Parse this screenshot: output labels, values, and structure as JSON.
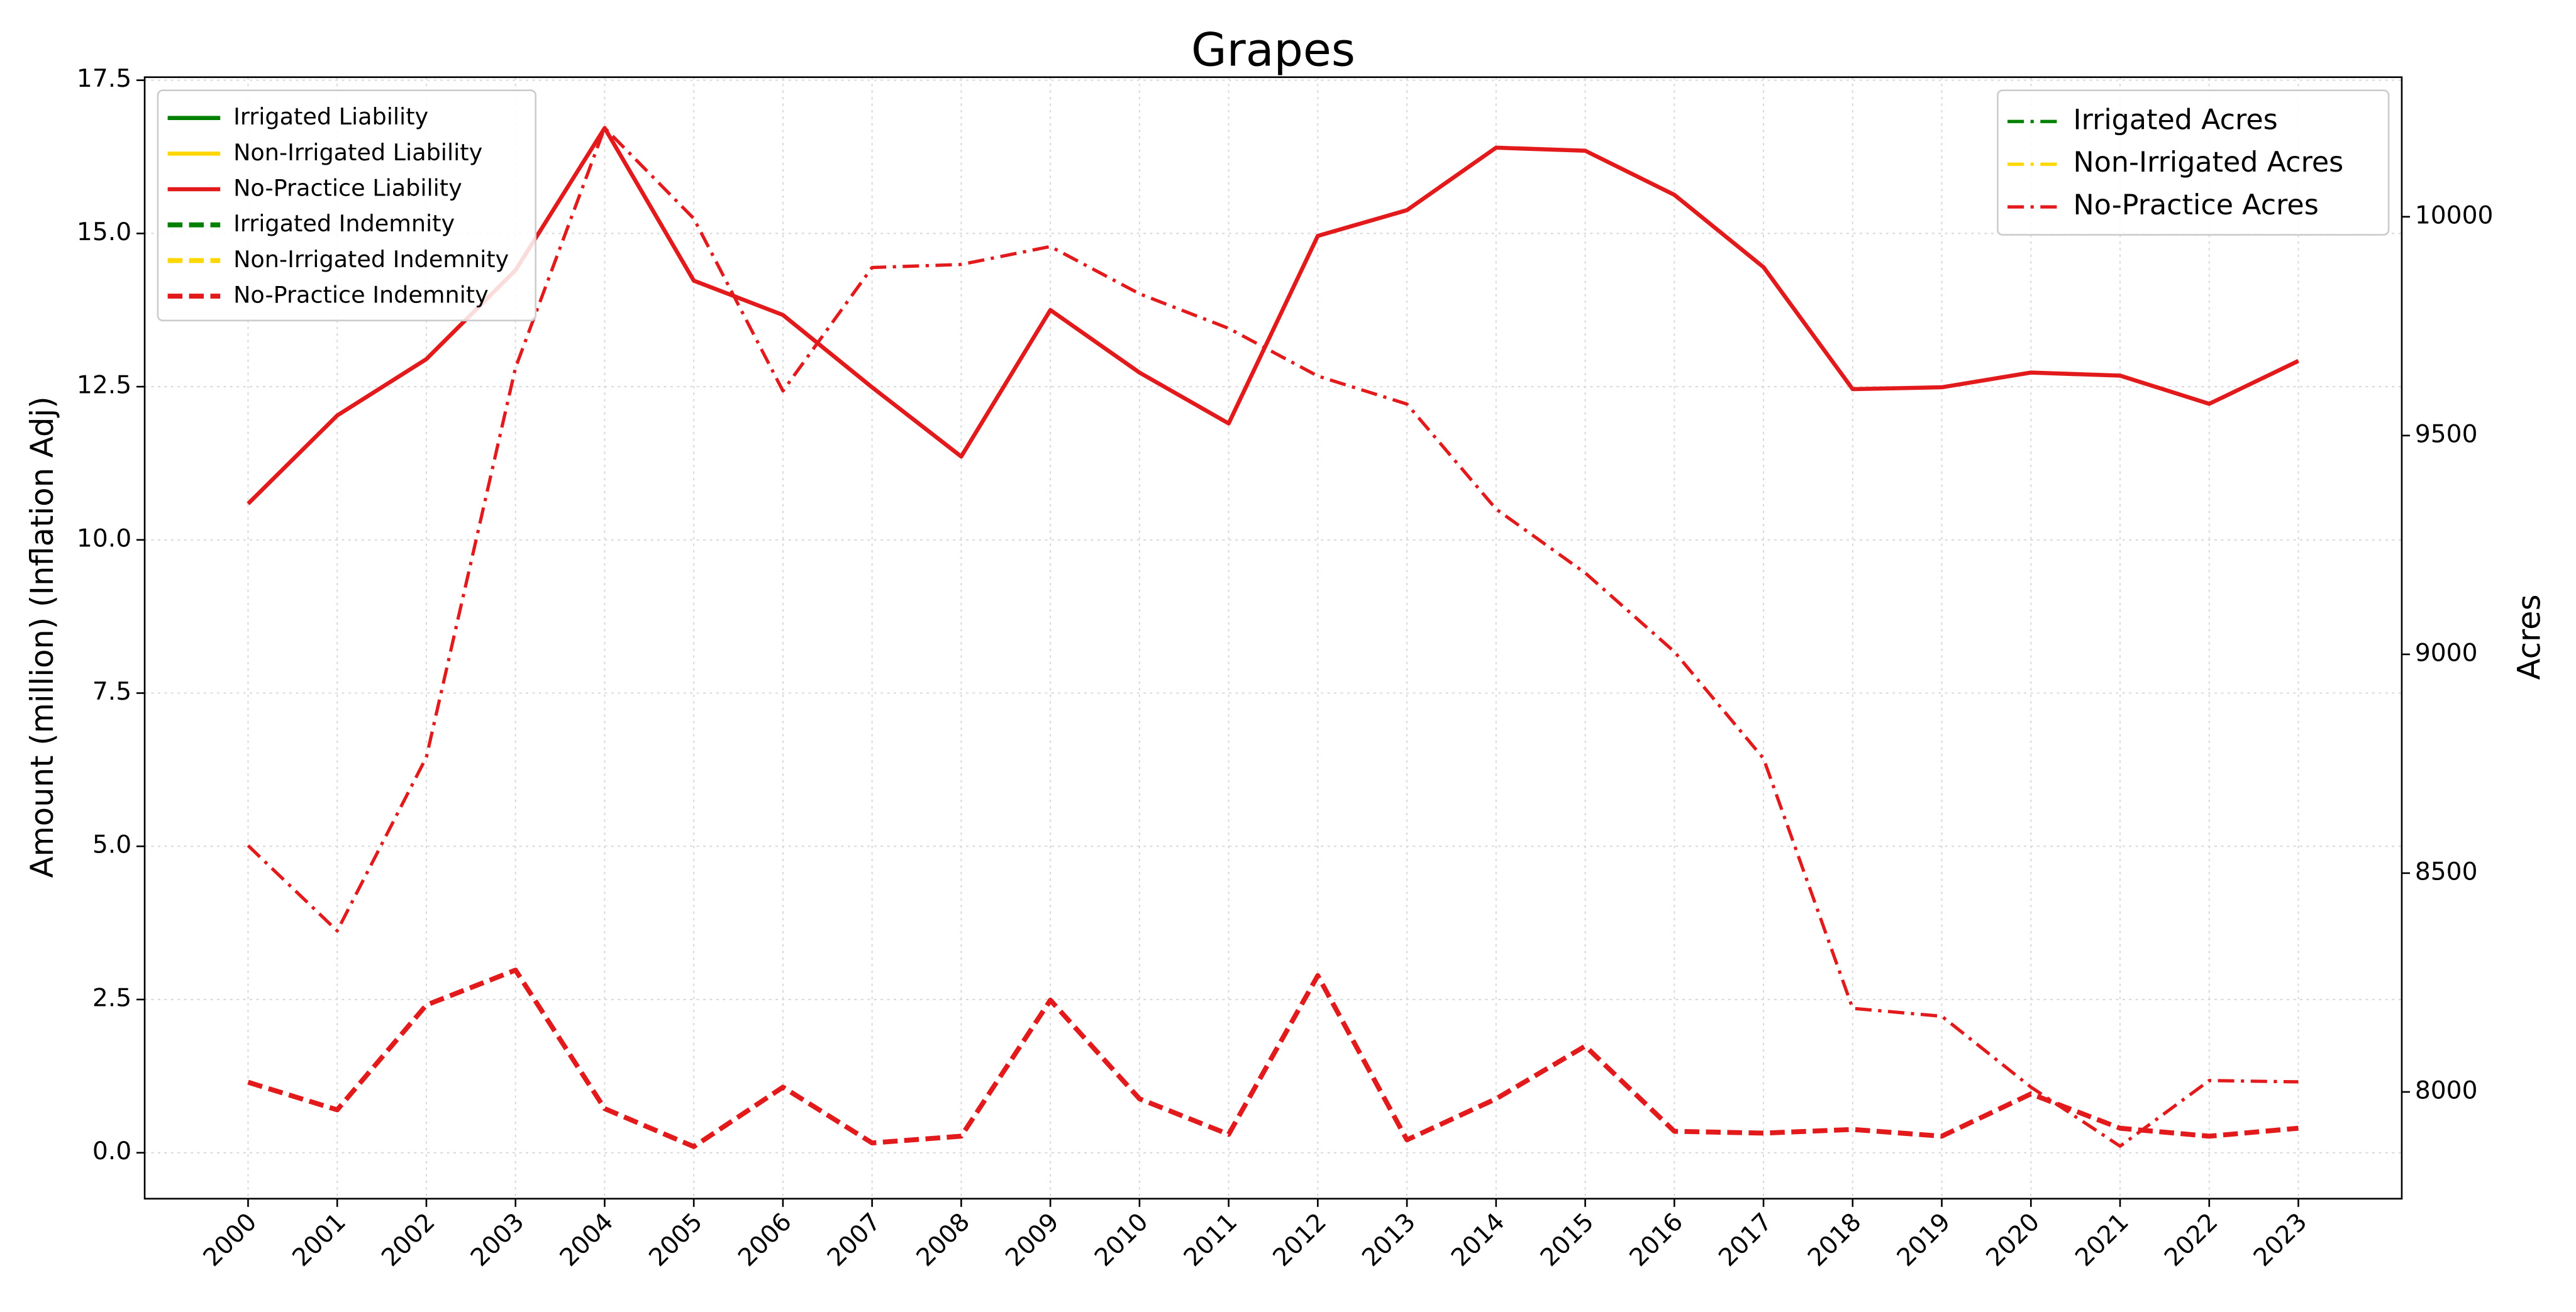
{
  "chart_data": {
    "type": "line",
    "title": "Grapes",
    "y_label": "Amount (million) (Inflation Adj)",
    "y2_label": "Acres",
    "x": [
      2000,
      2001,
      2002,
      2003,
      2004,
      2005,
      2006,
      2007,
      2008,
      2009,
      2010,
      2011,
      2012,
      2013,
      2014,
      2015,
      2016,
      2017,
      2018,
      2019,
      2020,
      2021,
      2022,
      2023
    ],
    "xlim": [
      1998.84,
      2024.16
    ],
    "xticks": [
      2000,
      2001,
      2002,
      2003,
      2004,
      2005,
      2006,
      2007,
      2008,
      2009,
      2010,
      2011,
      2012,
      2013,
      2014,
      2015,
      2016,
      2017,
      2018,
      2019,
      2020,
      2021,
      2022,
      2023
    ],
    "ylim": [
      -0.75,
      17.55
    ],
    "yticks": [
      {
        "value": 0,
        "label": "0.0"
      },
      2.5,
      {
        "value": 5,
        "label": "5.0"
      },
      7.5,
      {
        "value": 10,
        "label": "10.0"
      },
      12.5,
      {
        "value": 15,
        "label": "15.0"
      },
      17.5
    ],
    "y2lim": [
      7756,
      10319
    ],
    "y2ticks": [
      8000,
      8500,
      9000,
      9500,
      10000
    ],
    "grid": true,
    "legend": "upper left",
    "legend2": "upper right",
    "series": [
      {
        "name": "Irrigated Liability",
        "color": "#008000",
        "linestyle": "solid",
        "values": [
          null,
          null,
          null,
          null,
          null,
          null,
          null,
          null,
          null,
          null,
          null,
          null,
          null,
          null,
          null,
          null,
          null,
          null,
          null,
          null,
          null,
          null,
          null,
          null
        ]
      },
      {
        "name": "Non-Irrigated Liability",
        "color": "#ffd700",
        "linestyle": "solid",
        "values": [
          null,
          null,
          null,
          null,
          null,
          null,
          null,
          null,
          null,
          null,
          null,
          null,
          null,
          null,
          null,
          null,
          null,
          null,
          null,
          null,
          null,
          null,
          null,
          null
        ]
      },
      {
        "name": "No-Practice Liability",
        "color": "#e31a1c",
        "linestyle": "solid",
        "values": [
          10.59,
          12.03,
          12.95,
          14.4,
          16.72,
          14.23,
          13.67,
          12.49,
          11.36,
          13.75,
          12.73,
          11.9,
          14.96,
          15.38,
          16.4,
          16.35,
          15.63,
          14.45,
          12.46,
          12.49,
          12.73,
          12.68,
          12.22,
          12.92
        ]
      },
      {
        "name": "Irrigated Indemnity",
        "color": "#008000",
        "linestyle": "dashed",
        "values": [
          null,
          null,
          null,
          null,
          null,
          null,
          null,
          null,
          null,
          null,
          null,
          null,
          null,
          null,
          null,
          null,
          null,
          null,
          null,
          null,
          null,
          null,
          null,
          null
        ]
      },
      {
        "name": "Non-Irrigated Indemnity",
        "color": "#ffd700",
        "linestyle": "dashed",
        "values": [
          null,
          null,
          null,
          null,
          null,
          null,
          null,
          null,
          null,
          null,
          null,
          null,
          null,
          null,
          null,
          null,
          null,
          null,
          null,
          null,
          null,
          null,
          null,
          null
        ]
      },
      {
        "name": "No-Practice Indemnity",
        "color": "#e31a1c",
        "linestyle": "dashed",
        "values": [
          1.15,
          0.7,
          2.41,
          2.98,
          0.72,
          0.1,
          1.07,
          0.16,
          0.27,
          2.49,
          0.88,
          0.3,
          2.89,
          0.21,
          0.88,
          1.74,
          0.35,
          0.32,
          0.38,
          0.27,
          0.96,
          0.4,
          0.27,
          0.4
        ]
      },
      {
        "name": "Irrigated Acres",
        "color": "#008000",
        "linestyle": "dashdot",
        "axis": "y2",
        "values": [
          null,
          null,
          null,
          null,
          null,
          null,
          null,
          null,
          null,
          null,
          null,
          null,
          null,
          null,
          null,
          null,
          null,
          null,
          null,
          null,
          null,
          null,
          null,
          null
        ]
      },
      {
        "name": "Non-Irrigated Acres",
        "color": "#ffd700",
        "linestyle": "dashdot",
        "axis": "y2",
        "values": [
          null,
          null,
          null,
          null,
          null,
          null,
          null,
          null,
          null,
          null,
          null,
          null,
          null,
          null,
          null,
          null,
          null,
          null,
          null,
          null,
          null,
          null,
          null,
          null
        ]
      },
      {
        "name": "No-Practice Acres",
        "color": "#e31a1c",
        "linestyle": "dashdot",
        "axis": "y2",
        "values": [
          8563,
          8368,
          8765,
          9655,
          10203,
          9996,
          9602,
          9884,
          9891,
          9932,
          9824,
          9745,
          9636,
          9572,
          9332,
          9186,
          9006,
          8762,
          8191,
          8173,
          8011,
          7876,
          8026,
          8023
        ]
      }
    ]
  }
}
